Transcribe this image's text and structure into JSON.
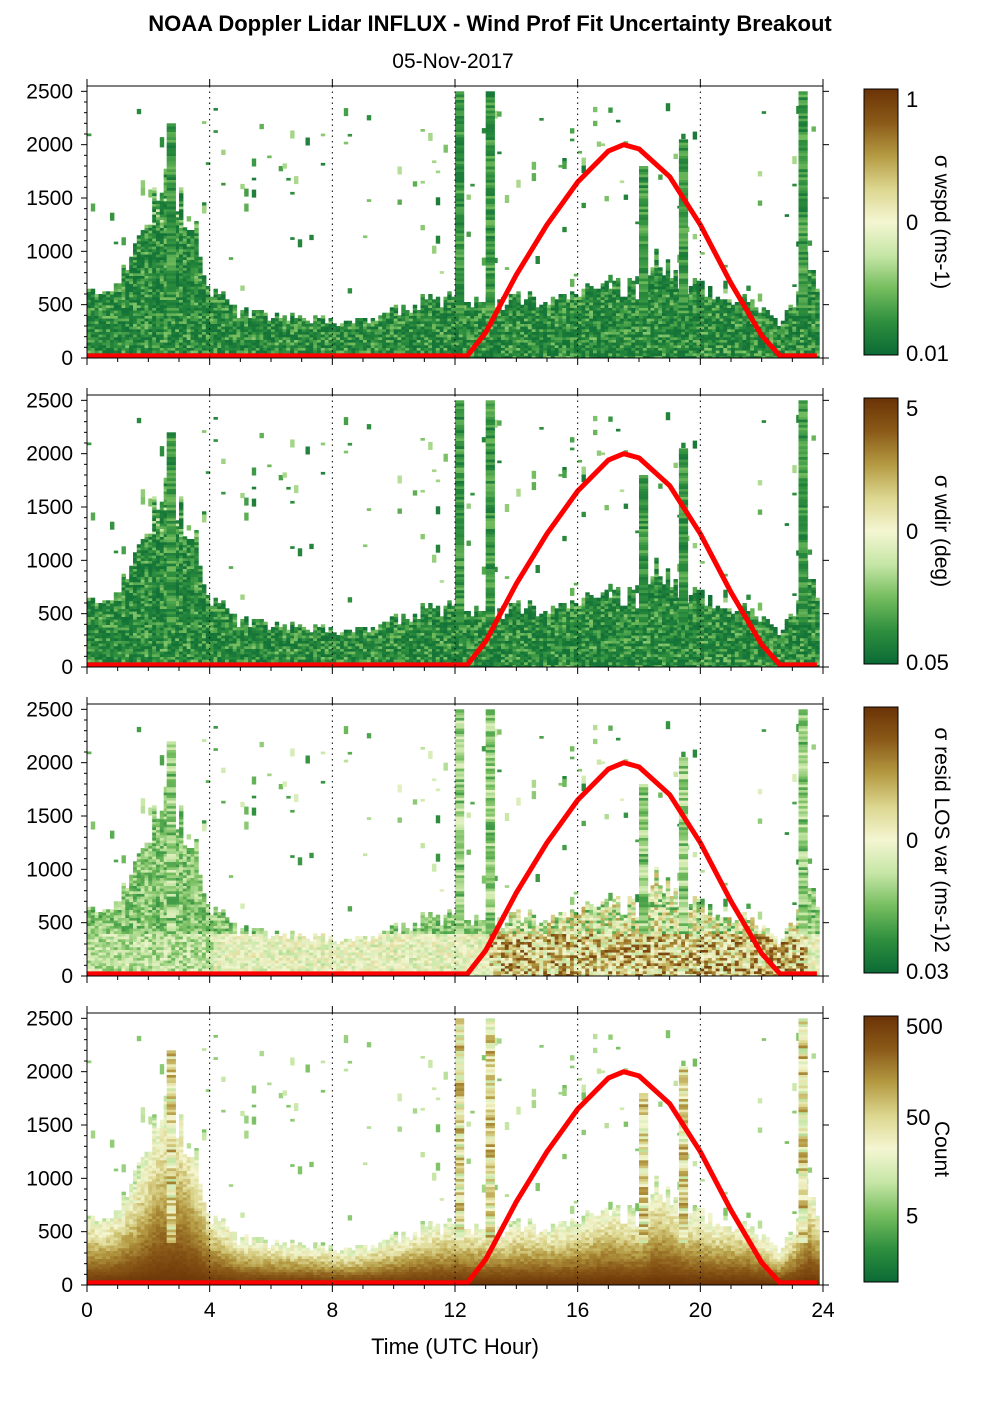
{
  "chart_data": {
    "type": "heatmap",
    "title": "NOAA Doppler Lidar INFLUX - Wind Prof Fit Uncertainty Breakout",
    "subtitle": "05-Nov-2017",
    "xlabel": "Time (UTC Hour)",
    "xlim": [
      0,
      24
    ],
    "xticks": [
      "0",
      "4",
      "8",
      "12",
      "16",
      "20",
      "24"
    ],
    "ylim": [
      0,
      2550
    ],
    "yticks": [
      "0",
      "500",
      "1000",
      "1500",
      "2000",
      "2500"
    ],
    "colormap": [
      "#0b6a35",
      "#2e8f3e",
      "#74bd5e",
      "#c6e6a6",
      "#f4f6d2",
      "#dcd68f",
      "#b49a42",
      "#8a5a18",
      "#6b3306"
    ],
    "sun_elevation_curve": {
      "color": "#ff0000",
      "x": [
        0,
        12.4,
        13,
        14,
        15,
        16,
        17,
        17.5,
        18,
        19,
        20,
        21,
        22,
        22.6,
        23.8
      ],
      "y": [
        20,
        20,
        240,
        780,
        1250,
        1650,
        1940,
        2000,
        1960,
        1700,
        1250,
        700,
        210,
        20,
        20
      ]
    },
    "height_envelope": {
      "x": [
        0,
        0.5,
        1,
        1.5,
        2,
        2.5,
        3,
        3.5,
        4,
        5,
        6,
        7,
        8,
        8.5,
        9,
        10,
        11,
        12,
        12.5,
        13,
        13.5,
        14,
        15,
        16,
        17,
        18,
        18.5,
        19,
        19.5,
        20,
        20.5,
        21,
        21.5,
        22,
        22.5,
        23,
        23.5,
        23.8
      ],
      "y": [
        600,
        580,
        700,
        900,
        1300,
        1600,
        1550,
        1200,
        650,
        420,
        380,
        360,
        320,
        300,
        340,
        420,
        520,
        560,
        540,
        520,
        500,
        560,
        520,
        580,
        700,
        620,
        900,
        780,
        650,
        640,
        560,
        560,
        560,
        450,
        300,
        500,
        900,
        650
      ]
    },
    "panels": [
      {
        "colorbar_label": "σ wspd (ms-1)",
        "colorbar_ticks": [
          "1",
          "0",
          "0.01"
        ],
        "value_field": "sigma_wspd"
      },
      {
        "colorbar_label": "σ wdir (deg)",
        "colorbar_ticks": [
          "5",
          "0",
          "0.05"
        ],
        "value_field": "sigma_wdir"
      },
      {
        "colorbar_label": "σ resid LOS var (ms-1)2",
        "colorbar_ticks": [
          "0",
          "0.03"
        ],
        "value_field": "sigma_resid_los_var"
      },
      {
        "colorbar_label": "Count",
        "colorbar_ticks": [
          "500",
          "50",
          "5"
        ],
        "value_field": "count"
      }
    ]
  }
}
